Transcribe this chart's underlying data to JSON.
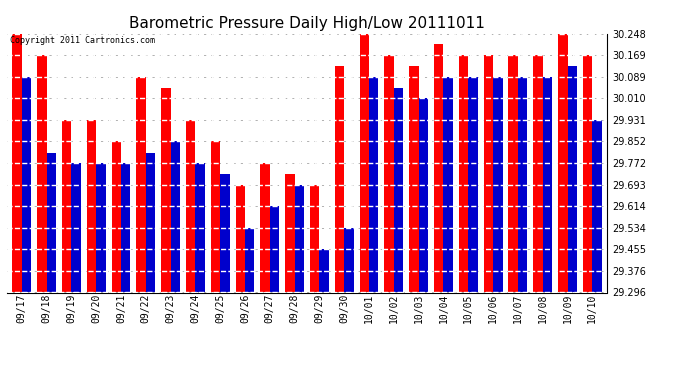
{
  "title": "Barometric Pressure Daily High/Low 20111011",
  "copyright": "Copyright 2011 Cartronics.com",
  "dates": [
    "09/17",
    "09/18",
    "09/19",
    "09/20",
    "09/21",
    "09/22",
    "09/23",
    "09/24",
    "09/25",
    "09/26",
    "09/27",
    "09/28",
    "09/29",
    "09/30",
    "10/01",
    "10/02",
    "10/03",
    "10/04",
    "10/05",
    "10/06",
    "10/07",
    "10/08",
    "10/09",
    "10/10"
  ],
  "highs": [
    30.248,
    30.169,
    29.931,
    29.931,
    29.852,
    30.089,
    30.05,
    29.931,
    29.852,
    29.693,
    29.772,
    29.731,
    29.693,
    30.13,
    30.248,
    30.169,
    30.13,
    30.21,
    30.169,
    30.169,
    30.169,
    30.169,
    30.248,
    30.169
  ],
  "lows": [
    30.089,
    29.81,
    29.772,
    29.772,
    29.772,
    29.81,
    29.852,
    29.772,
    29.731,
    29.534,
    29.614,
    29.693,
    29.455,
    29.534,
    30.089,
    30.05,
    30.01,
    30.089,
    30.089,
    30.089,
    30.089,
    30.089,
    30.13,
    29.931
  ],
  "ymin": 29.296,
  "ymax": 30.248,
  "yticks": [
    29.296,
    29.376,
    29.455,
    29.534,
    29.614,
    29.693,
    29.772,
    29.852,
    29.931,
    30.01,
    30.089,
    30.169,
    30.248
  ],
  "bar_width": 0.38,
  "high_color": "#ff0000",
  "low_color": "#0000cc",
  "bg_color": "#ffffff",
  "plot_bg_color": "#ffffff",
  "grid_color": "#b0b0b0",
  "title_fontsize": 11,
  "tick_fontsize": 7
}
